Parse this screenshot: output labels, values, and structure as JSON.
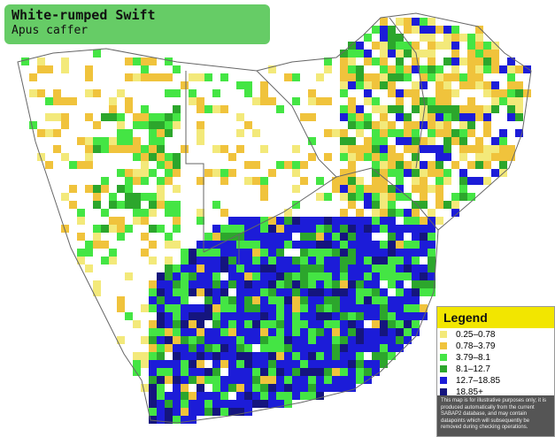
{
  "header": {
    "title": "White-rumped Swift",
    "subtitle": "Apus caffer"
  },
  "legend": {
    "title": "Legend",
    "items": [
      {
        "label": "0.25–0.78",
        "color": "#f3e97a"
      },
      {
        "label": "0.78–3.79",
        "color": "#f0c33c"
      },
      {
        "label": "3.79–8.1",
        "color": "#44e544"
      },
      {
        "label": "8.1–12.7",
        "color": "#2ca62c"
      },
      {
        "label": "12.7–18.85",
        "color": "#1c1cd8"
      },
      {
        "label": "18.85+",
        "color": "#15157e"
      }
    ]
  },
  "disclaimer": "This map is for illustrative purposes only; it is produced automatically from the current SABAP2 database, and may contain datapoints which will subsequently be removed during checking operations."
}
